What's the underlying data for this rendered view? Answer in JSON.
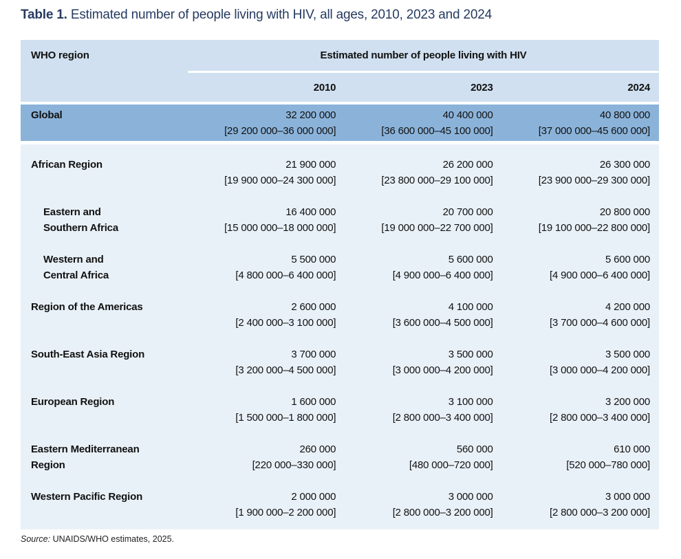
{
  "page": {
    "title_label": "Table 1.",
    "title_text": "Estimated number of people living with HIV, all ages, 2010, 2023 and 2024",
    "source_prefix": "Source:",
    "source_text": "UNAIDS/WHO estimates, 2025."
  },
  "colors": {
    "header_bg": "#d0e0f0",
    "global_row_bg": "#8bb3da",
    "body_bg": "#e9f1f8",
    "title_color": "#263a61"
  },
  "table": {
    "col0_header": "WHO region",
    "group_header": "Estimated number of people living with HIV",
    "years": [
      "2010",
      "2023",
      "2024"
    ],
    "global": {
      "label": "Global",
      "values": [
        {
          "estimate": "32 200 000",
          "range": "[29 200 000–36 000 000]"
        },
        {
          "estimate": "40 400 000",
          "range": "[36 600 000–45 100 000]"
        },
        {
          "estimate": "40 800 000",
          "range": "[37 000 000–45 600 000]"
        }
      ]
    },
    "rows": [
      {
        "label_lines": [
          "African Region"
        ],
        "indent": false,
        "values": [
          {
            "estimate": "21 900 000",
            "range": "[19 900 000–24 300 000]"
          },
          {
            "estimate": "26 200 000",
            "range": "[23 800 000–29 100 000]"
          },
          {
            "estimate": "26 300 000",
            "range": "[23 900 000–29 300 000]"
          }
        ]
      },
      {
        "label_lines": [
          "Eastern and",
          "Southern Africa"
        ],
        "indent": true,
        "values": [
          {
            "estimate": "16 400 000",
            "range": "[15 000 000–18 000 000]"
          },
          {
            "estimate": "20 700 000",
            "range": "[19 000 000–22 700 000]"
          },
          {
            "estimate": "20 800 000",
            "range": "[19 100 000–22 800 000]"
          }
        ]
      },
      {
        "label_lines": [
          "Western and",
          "Central Africa"
        ],
        "indent": true,
        "values": [
          {
            "estimate": "5 500 000",
            "range": "[4 800 000–6 400 000]"
          },
          {
            "estimate": "5 600 000",
            "range": "[4 900 000–6 400 000]"
          },
          {
            "estimate": "5 600 000",
            "range": "[4 900 000–6 400 000]"
          }
        ]
      },
      {
        "label_lines": [
          "Region of the Americas"
        ],
        "indent": false,
        "values": [
          {
            "estimate": "2 600 000",
            "range": "[2 400 000–3 100 000]"
          },
          {
            "estimate": "4 100 000",
            "range": "[3 600 000–4 500 000]"
          },
          {
            "estimate": "4 200 000",
            "range": "[3 700 000–4 600 000]"
          }
        ]
      },
      {
        "label_lines": [
          "South-East Asia Region"
        ],
        "indent": false,
        "values": [
          {
            "estimate": "3 700 000",
            "range": "[3 200 000–4 500 000]"
          },
          {
            "estimate": "3 500 000",
            "range": "[3 000 000–4 200 000]"
          },
          {
            "estimate": "3 500 000",
            "range": "[3 000 000–4 200 000]"
          }
        ]
      },
      {
        "label_lines": [
          "European Region"
        ],
        "indent": false,
        "values": [
          {
            "estimate": "1 600 000",
            "range": "[1 500 000–1 800 000]"
          },
          {
            "estimate": "3 100 000",
            "range": "[2 800 000–3 400 000]"
          },
          {
            "estimate": "3 200 000",
            "range": "[2 800 000–3 400 000]"
          }
        ]
      },
      {
        "label_lines": [
          "Eastern Mediterranean",
          "Region"
        ],
        "indent": false,
        "values": [
          {
            "estimate": "260 000",
            "range": "[220 000–330 000]"
          },
          {
            "estimate": "560 000",
            "range": "[480 000–720 000]"
          },
          {
            "estimate": "610 000",
            "range": "[520 000–780 000]"
          }
        ]
      },
      {
        "label_lines": [
          "Western Pacific Region"
        ],
        "indent": false,
        "values": [
          {
            "estimate": "2 000 000",
            "range": "[1 900 000–2 200 000]"
          },
          {
            "estimate": "3 000 000",
            "range": "[2 800 000–3 200 000]"
          },
          {
            "estimate": "3 000 000",
            "range": "[2 800 000–3 200 000]"
          }
        ]
      }
    ]
  }
}
